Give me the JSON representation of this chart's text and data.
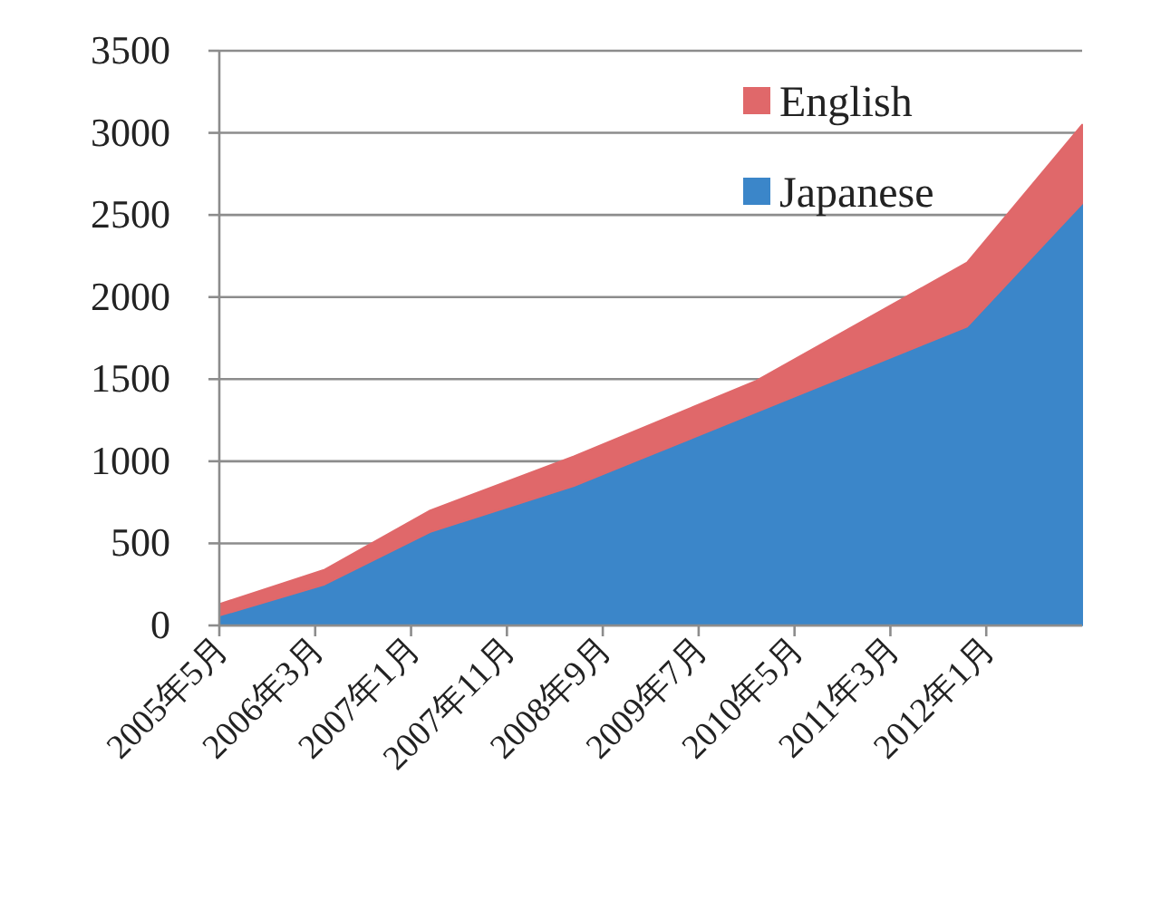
{
  "chart_data": {
    "type": "area",
    "stacked": true,
    "x": [
      "2005-05",
      "2006-04",
      "2007-03",
      "2008-06",
      "2010-01",
      "2011-11",
      "2012-11"
    ],
    "series": [
      {
        "name": "Japanese",
        "color": "#3b86c9",
        "values": [
          60,
          250,
          570,
          850,
          1300,
          1820,
          2570
        ]
      },
      {
        "name": "English",
        "color": "#e0686a",
        "values": [
          70,
          90,
          130,
          180,
          190,
          390,
          480
        ]
      }
    ],
    "xlim": [
      "2005-05",
      "2012-11"
    ],
    "xticks": [
      {
        "value": "2005-05",
        "label": "2005年5月"
      },
      {
        "value": "2006-03",
        "label": "2006年3月"
      },
      {
        "value": "2007-01",
        "label": "2007年1月"
      },
      {
        "value": "2007-11",
        "label": "2007年11月"
      },
      {
        "value": "2008-09",
        "label": "2008年9月"
      },
      {
        "value": "2009-07",
        "label": "2009年7月"
      },
      {
        "value": "2010-05",
        "label": "2010年5月"
      },
      {
        "value": "2011-03",
        "label": "2011年3月"
      },
      {
        "value": "2012-01",
        "label": "2012年1月"
      }
    ],
    "ylim": [
      0,
      3500
    ],
    "yticks": [
      0,
      500,
      1000,
      1500,
      2000,
      2500,
      3000,
      3500
    ],
    "grid": "y",
    "legend": "top right"
  }
}
